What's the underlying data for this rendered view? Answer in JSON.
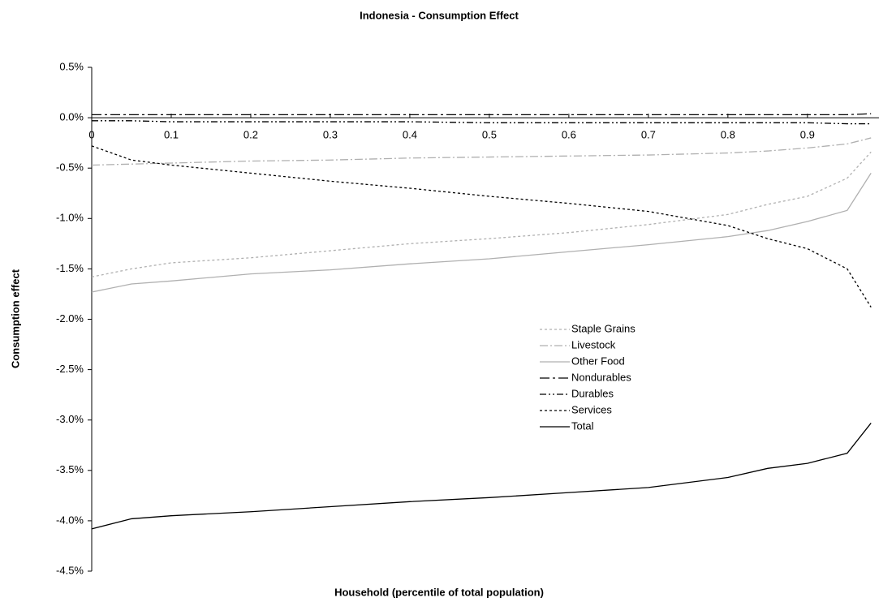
{
  "chart_data": {
    "type": "line",
    "title": "Indonesia - Consumption Effect",
    "xlabel": "Household (percentile of total population)",
    "ylabel": "Consumption effect",
    "x": [
      0,
      0.05,
      0.1,
      0.2,
      0.3,
      0.4,
      0.5,
      0.6,
      0.7,
      0.8,
      0.85,
      0.9,
      0.95,
      0.98
    ],
    "xlim": [
      0,
      0.99
    ],
    "xticks": [
      0,
      0.1,
      0.2,
      0.3,
      0.4,
      0.5,
      0.6,
      0.7,
      0.8,
      0.9
    ],
    "ylim": [
      -4.5,
      0.5
    ],
    "yticks": [
      {
        "value": 0.5,
        "label": "0.5%"
      },
      {
        "value": 0,
        "label": "0.0%"
      },
      {
        "value": -0.5,
        "label": "-0.5%"
      },
      {
        "value": -1,
        "label": "-1.0%"
      },
      {
        "value": -1.5,
        "label": "-1.5%"
      },
      {
        "value": -2,
        "label": "-2.0%"
      },
      {
        "value": -2.5,
        "label": "-2.5%"
      },
      {
        "value": -3,
        "label": "-3.0%"
      },
      {
        "value": -3.5,
        "label": "-3.5%"
      },
      {
        "value": -4,
        "label": "-4.0%"
      },
      {
        "value": -4.5,
        "label": "-4.5%"
      }
    ],
    "series": [
      {
        "name": "Staple Grains",
        "color": "#b0b0b0",
        "dash": "3,3",
        "values": [
          -1.58,
          -1.5,
          -1.44,
          -1.39,
          -1.32,
          -1.25,
          -1.2,
          -1.14,
          -1.06,
          -0.96,
          -0.86,
          -0.78,
          -0.6,
          -0.34
        ]
      },
      {
        "name": "Livestock",
        "color": "#b0b0b0",
        "dash": "10,3,2,3",
        "values": [
          -0.47,
          -0.46,
          -0.45,
          -0.43,
          -0.42,
          -0.4,
          -0.39,
          -0.38,
          -0.37,
          -0.35,
          -0.33,
          -0.3,
          -0.26,
          -0.2
        ]
      },
      {
        "name": "Other Food",
        "color": "#b0b0b0",
        "dash": "none",
        "values": [
          -1.73,
          -1.65,
          -1.62,
          -1.55,
          -1.51,
          -1.45,
          -1.4,
          -1.33,
          -1.26,
          -1.18,
          -1.12,
          -1.03,
          -0.92,
          -0.55
        ]
      },
      {
        "name": "Nondurables",
        "color": "#000000",
        "dash": "12,4,3,4",
        "values": [
          0.03,
          0.03,
          0.03,
          0.03,
          0.03,
          0.03,
          0.03,
          0.03,
          0.03,
          0.03,
          0.03,
          0.03,
          0.03,
          0.04
        ]
      },
      {
        "name": "Durables",
        "color": "#000000",
        "dash": "8,3,2,3,2,3",
        "values": [
          -0.03,
          -0.03,
          -0.04,
          -0.04,
          -0.04,
          -0.04,
          -0.05,
          -0.05,
          -0.05,
          -0.05,
          -0.05,
          -0.05,
          -0.06,
          -0.06
        ]
      },
      {
        "name": "Services",
        "color": "#000000",
        "dash": "3,3",
        "values": [
          -0.28,
          -0.42,
          -0.47,
          -0.55,
          -0.63,
          -0.7,
          -0.78,
          -0.85,
          -0.93,
          -1.07,
          -1.2,
          -1.3,
          -1.5,
          -1.88
        ]
      },
      {
        "name": "Total",
        "color": "#000000",
        "dash": "none",
        "values": [
          -4.08,
          -3.98,
          -3.95,
          -3.91,
          -3.86,
          -3.81,
          -3.77,
          -3.72,
          -3.67,
          -3.57,
          -3.48,
          -3.43,
          -3.33,
          -3.03
        ]
      }
    ]
  }
}
